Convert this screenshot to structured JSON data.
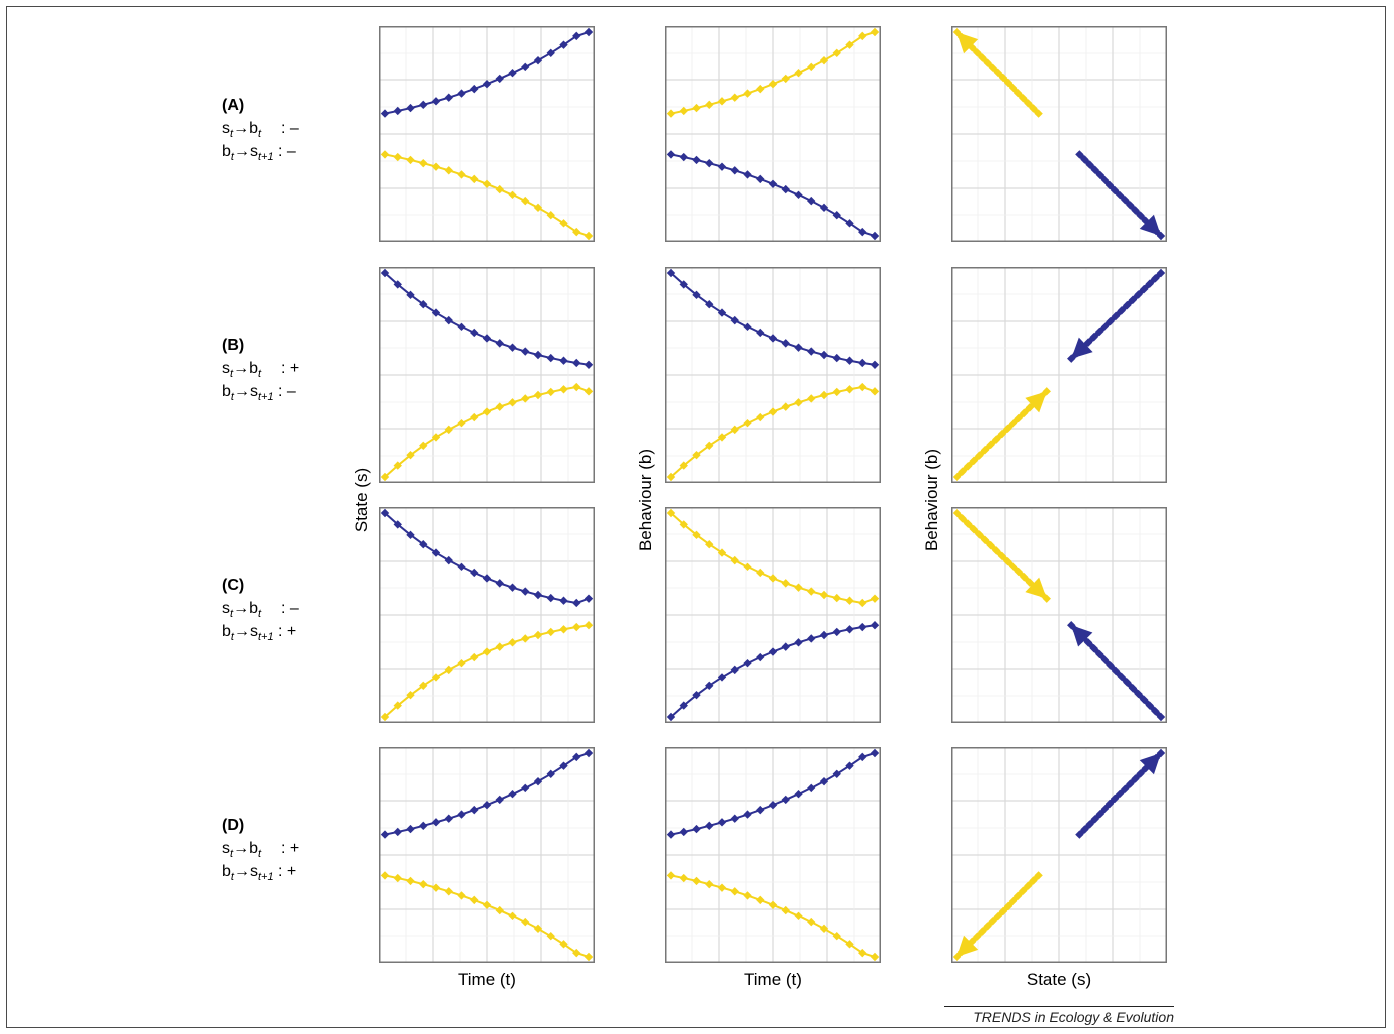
{
  "rows": [
    {
      "letter": "(A)",
      "s_to_b_sign": ": –",
      "b_to_s_sign": ": –"
    },
    {
      "letter": "(B)",
      "s_to_b_sign": ": +",
      "b_to_s_sign": ": –"
    },
    {
      "letter": "(C)",
      "s_to_b_sign": ": –",
      "b_to_s_sign": ": +"
    },
    {
      "letter": "(D)",
      "s_to_b_sign": ": +",
      "b_to_s_sign": ": +"
    }
  ],
  "relation_text": {
    "s": "s",
    "b": "b",
    "arrow": "→",
    "t": "t",
    "t1": "t+1"
  },
  "axis_labels": {
    "col1_y": "State (s)",
    "col2_y": "Behaviour (b)",
    "col3_y": "Behaviour (b)",
    "col1_x": "Time (t)",
    "col2_x": "Time (t)",
    "col3_x": "State (s)"
  },
  "footer": "TRENDS in Ecology & Evolution",
  "colors": {
    "blue": "#2e3192",
    "yellow": "#f5d41c",
    "grid_major": "#d9d9d9",
    "grid_minor": "#efefef",
    "border": "#777777"
  },
  "chart_data": [
    {
      "panel": "A-state",
      "type": "line",
      "series": [
        {
          "color": "blue",
          "y": [
            0.6,
            0.613,
            0.627,
            0.643,
            0.66,
            0.678,
            0.698,
            0.72,
            0.744,
            0.77,
            0.798,
            0.829,
            0.862,
            0.898,
            0.938,
            0.981,
            1.0
          ]
        },
        {
          "color": "yellow",
          "y": [
            0.4,
            0.387,
            0.373,
            0.357,
            0.34,
            0.322,
            0.302,
            0.28,
            0.256,
            0.23,
            0.202,
            0.171,
            0.138,
            0.102,
            0.062,
            0.019,
            0.0
          ]
        }
      ]
    },
    {
      "panel": "A-behaviour",
      "type": "line",
      "series": [
        {
          "color": "yellow",
          "y": [
            0.6,
            0.613,
            0.627,
            0.643,
            0.66,
            0.678,
            0.698,
            0.72,
            0.744,
            0.77,
            0.798,
            0.829,
            0.862,
            0.898,
            0.938,
            0.981,
            1.0
          ]
        },
        {
          "color": "blue",
          "y": [
            0.4,
            0.387,
            0.373,
            0.357,
            0.34,
            0.322,
            0.302,
            0.28,
            0.256,
            0.23,
            0.202,
            0.171,
            0.138,
            0.102,
            0.062,
            0.019,
            0.0
          ]
        }
      ]
    },
    {
      "panel": "A-phase",
      "type": "scatter",
      "series": [
        {
          "color": "yellow",
          "x0": 0.4,
          "y0": 0.6,
          "x1": 0.0,
          "y1": 1.0
        },
        {
          "color": "blue",
          "x0": 0.6,
          "y0": 0.4,
          "x1": 1.0,
          "y1": 0.0
        }
      ]
    },
    {
      "panel": "B-state",
      "type": "line",
      "series": [
        {
          "color": "blue",
          "y": [
            1.0,
            0.944,
            0.893,
            0.847,
            0.806,
            0.769,
            0.736,
            0.706,
            0.679,
            0.655,
            0.634,
            0.615,
            0.598,
            0.583,
            0.57,
            0.559,
            0.55
          ]
        },
        {
          "color": "yellow",
          "y": [
            0.0,
            0.056,
            0.107,
            0.153,
            0.194,
            0.231,
            0.264,
            0.294,
            0.321,
            0.345,
            0.366,
            0.385,
            0.402,
            0.417,
            0.43,
            0.441,
            0.42
          ]
        }
      ]
    },
    {
      "panel": "B-behaviour",
      "type": "line",
      "series": [
        {
          "color": "blue",
          "y": [
            1.0,
            0.944,
            0.893,
            0.847,
            0.806,
            0.769,
            0.736,
            0.706,
            0.679,
            0.655,
            0.634,
            0.615,
            0.598,
            0.583,
            0.57,
            0.559,
            0.55
          ]
        },
        {
          "color": "yellow",
          "y": [
            0.0,
            0.056,
            0.107,
            0.153,
            0.194,
            0.231,
            0.264,
            0.294,
            0.321,
            0.345,
            0.366,
            0.385,
            0.402,
            0.417,
            0.43,
            0.441,
            0.42
          ]
        }
      ]
    },
    {
      "panel": "B-phase",
      "type": "scatter",
      "series": [
        {
          "color": "yellow",
          "x0": 0.0,
          "y0": 0.0,
          "x1": 0.44,
          "y1": 0.42
        },
        {
          "color": "blue",
          "x0": 1.0,
          "y0": 1.0,
          "x1": 0.56,
          "y1": 0.58
        }
      ]
    },
    {
      "panel": "C-state",
      "type": "line",
      "series": [
        {
          "color": "blue",
          "y": [
            1.0,
            0.944,
            0.893,
            0.847,
            0.806,
            0.769,
            0.736,
            0.706,
            0.679,
            0.655,
            0.634,
            0.615,
            0.598,
            0.583,
            0.57,
            0.559,
            0.58
          ]
        },
        {
          "color": "yellow",
          "y": [
            0.0,
            0.056,
            0.107,
            0.153,
            0.194,
            0.231,
            0.264,
            0.294,
            0.321,
            0.345,
            0.366,
            0.385,
            0.402,
            0.417,
            0.43,
            0.441,
            0.45
          ]
        }
      ]
    },
    {
      "panel": "C-behaviour",
      "type": "line",
      "series": [
        {
          "color": "yellow",
          "y": [
            1.0,
            0.944,
            0.893,
            0.847,
            0.806,
            0.769,
            0.736,
            0.706,
            0.679,
            0.655,
            0.634,
            0.615,
            0.598,
            0.583,
            0.57,
            0.559,
            0.58
          ]
        },
        {
          "color": "blue",
          "y": [
            0.0,
            0.056,
            0.107,
            0.153,
            0.194,
            0.231,
            0.264,
            0.294,
            0.321,
            0.345,
            0.366,
            0.385,
            0.402,
            0.417,
            0.43,
            0.441,
            0.45
          ]
        }
      ]
    },
    {
      "panel": "C-phase",
      "type": "scatter",
      "series": [
        {
          "color": "yellow",
          "x0": 0.0,
          "y0": 1.0,
          "x1": 0.44,
          "y1": 0.58
        },
        {
          "color": "blue",
          "x0": 1.0,
          "y0": 0.0,
          "x1": 0.56,
          "y1": 0.45
        }
      ]
    },
    {
      "panel": "D-state",
      "type": "line",
      "series": [
        {
          "color": "blue",
          "y": [
            0.6,
            0.613,
            0.627,
            0.643,
            0.66,
            0.678,
            0.698,
            0.72,
            0.744,
            0.77,
            0.798,
            0.829,
            0.862,
            0.898,
            0.938,
            0.981,
            1.0
          ]
        },
        {
          "color": "yellow",
          "y": [
            0.4,
            0.387,
            0.373,
            0.357,
            0.34,
            0.322,
            0.302,
            0.28,
            0.256,
            0.23,
            0.202,
            0.171,
            0.138,
            0.102,
            0.062,
            0.019,
            0.0
          ]
        }
      ]
    },
    {
      "panel": "D-behaviour",
      "type": "line",
      "series": [
        {
          "color": "blue",
          "y": [
            0.6,
            0.613,
            0.627,
            0.643,
            0.66,
            0.678,
            0.698,
            0.72,
            0.744,
            0.77,
            0.798,
            0.829,
            0.862,
            0.898,
            0.938,
            0.981,
            1.0
          ]
        },
        {
          "color": "yellow",
          "y": [
            0.4,
            0.387,
            0.373,
            0.357,
            0.34,
            0.322,
            0.302,
            0.28,
            0.256,
            0.23,
            0.202,
            0.171,
            0.138,
            0.102,
            0.062,
            0.019,
            0.0
          ]
        }
      ]
    },
    {
      "panel": "D-phase",
      "type": "scatter",
      "series": [
        {
          "color": "yellow",
          "x0": 0.4,
          "y0": 0.4,
          "x1": 0.0,
          "y1": 0.0
        },
        {
          "color": "blue",
          "x0": 0.6,
          "y0": 0.6,
          "x1": 1.0,
          "y1": 1.0
        }
      ]
    }
  ]
}
